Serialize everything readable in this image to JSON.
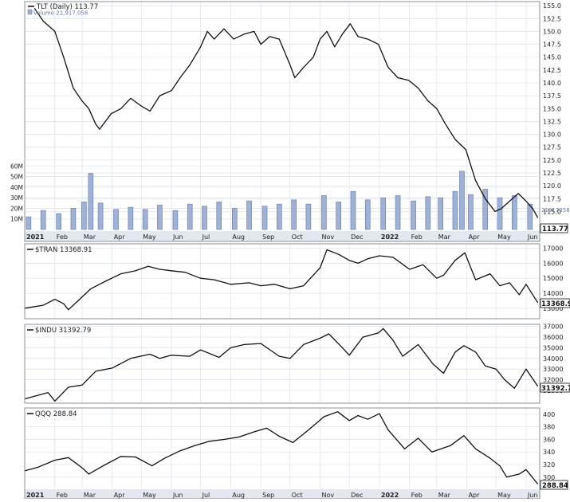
{
  "colors": {
    "line": "#111111",
    "volume_fill": "#9fb2d6",
    "volume_stroke": "#5f78ad",
    "grid": "#dfe4ee",
    "frame": "#8a8f9a",
    "band": "#e3e7ef",
    "text": "#222222"
  },
  "x_axis": {
    "start": "2021-01-01",
    "end": "2022-06-15",
    "ticks": [
      {
        "label": "2021",
        "date": "2021-01-01",
        "bold": true
      },
      {
        "label": "Feb",
        "date": "2021-02-01"
      },
      {
        "label": "Mar",
        "date": "2021-03-01"
      },
      {
        "label": "Apr",
        "date": "2021-04-01"
      },
      {
        "label": "May",
        "date": "2021-05-01"
      },
      {
        "label": "Jun",
        "date": "2021-06-01"
      },
      {
        "label": "Jul",
        "date": "2021-07-01"
      },
      {
        "label": "Aug",
        "date": "2021-08-01"
      },
      {
        "label": "Sep",
        "date": "2021-09-01"
      },
      {
        "label": "Oct",
        "date": "2021-10-01"
      },
      {
        "label": "Nov",
        "date": "2021-11-01"
      },
      {
        "label": "Dec",
        "date": "2021-12-01"
      },
      {
        "label": "2022",
        "date": "2022-01-01",
        "bold": true
      },
      {
        "label": "Feb",
        "date": "2022-02-01"
      },
      {
        "label": "Mar",
        "date": "2022-03-01"
      },
      {
        "label": "Apr",
        "date": "2022-04-01"
      },
      {
        "label": "May",
        "date": "2022-05-01"
      },
      {
        "label": "Jun",
        "date": "2022-06-01"
      }
    ]
  },
  "chart_data": [
    {
      "type": "line",
      "legend": "TLT (Daily) 113.77",
      "volume_legend": "Volume 21,917,058",
      "last_label": "113.77",
      "ylim": [
        111.5,
        155.8
      ],
      "yticks": [
        115,
        117.5,
        120,
        122.5,
        125,
        127.5,
        130,
        132.5,
        135,
        137.5,
        140,
        142.5,
        145,
        147.5,
        150,
        152.5,
        155
      ],
      "ytick_labels": [
        "115.0",
        "117.5",
        "120.0",
        "122.5",
        "125.0",
        "127.5",
        "130.0",
        "132.5",
        "135.0",
        "137.5",
        "140.0",
        "142.5",
        "145.0",
        "147.5",
        "150.0",
        "152.5",
        "155.0"
      ],
      "x": [
        "2021-01-11",
        "2021-01-20",
        "2021-02-01",
        "2021-02-10",
        "2021-02-20",
        "2021-03-01",
        "2021-03-08",
        "2021-03-15",
        "2021-03-19",
        "2021-03-31",
        "2021-04-10",
        "2021-04-20",
        "2021-05-01",
        "2021-05-10",
        "2021-05-20",
        "2021-06-01",
        "2021-06-10",
        "2021-06-20",
        "2021-07-01",
        "2021-07-08",
        "2021-07-15",
        "2021-07-25",
        "2021-08-04",
        "2021-08-15",
        "2021-08-25",
        "2021-09-01",
        "2021-09-10",
        "2021-09-20",
        "2021-10-01",
        "2021-10-06",
        "2021-10-15",
        "2021-10-25",
        "2021-11-01",
        "2021-11-08",
        "2021-11-16",
        "2021-11-24",
        "2021-12-02",
        "2021-12-10",
        "2021-12-20",
        "2021-12-31",
        "2022-01-10",
        "2022-01-20",
        "2022-01-31",
        "2022-02-10",
        "2022-02-20",
        "2022-03-01",
        "2022-03-10",
        "2022-03-20",
        "2022-03-31",
        "2022-04-10",
        "2022-04-20",
        "2022-04-30",
        "2022-05-06",
        "2022-05-15",
        "2022-05-24",
        "2022-06-01",
        "2022-06-08",
        "2022-06-13"
      ],
      "y": [
        154.5,
        152.0,
        150.0,
        145.0,
        139.0,
        136.5,
        135.0,
        132.0,
        131.0,
        134.0,
        135.0,
        137.0,
        135.5,
        134.5,
        137.5,
        138.5,
        141.0,
        143.5,
        147.0,
        150.0,
        148.5,
        150.5,
        148.5,
        149.5,
        150.0,
        147.5,
        149.0,
        148.5,
        143.5,
        141.0,
        143.0,
        145.0,
        148.5,
        150.0,
        147.0,
        149.5,
        151.5,
        149.0,
        148.5,
        147.5,
        143.0,
        141.0,
        140.5,
        139.0,
        136.5,
        135.0,
        132.0,
        129.0,
        127.0,
        121.0,
        117.5,
        115.0,
        115.5,
        117.0,
        118.5,
        117.0,
        115.5,
        113.77
      ]
    },
    {
      "type": "bar",
      "name": "Volume",
      "ylim": [
        0,
        70000000
      ],
      "yticks": [
        10000000,
        20000000,
        30000000,
        40000000,
        50000000,
        60000000
      ],
      "ytick_labels": [
        "10M",
        "20M",
        "30M",
        "40M",
        "50M",
        "60M"
      ],
      "last_label": "21917058",
      "x": [
        "2021-01-05",
        "2021-01-20",
        "2021-02-05",
        "2021-02-20",
        "2021-03-03",
        "2021-03-10",
        "2021-03-20",
        "2021-04-05",
        "2021-04-20",
        "2021-05-05",
        "2021-05-20",
        "2021-06-05",
        "2021-06-20",
        "2021-07-05",
        "2021-07-20",
        "2021-08-05",
        "2021-08-20",
        "2021-09-05",
        "2021-09-20",
        "2021-10-05",
        "2021-10-20",
        "2021-11-05",
        "2021-11-20",
        "2021-12-05",
        "2021-12-20",
        "2022-01-05",
        "2022-01-20",
        "2022-02-05",
        "2022-02-20",
        "2022-03-05",
        "2022-03-20",
        "2022-03-27",
        "2022-04-05",
        "2022-04-20",
        "2022-05-05",
        "2022-05-20",
        "2022-06-05"
      ],
      "values": [
        12000000,
        18000000,
        15000000,
        20000000,
        26000000,
        53000000,
        25000000,
        19000000,
        21000000,
        19000000,
        23000000,
        18000000,
        24000000,
        22000000,
        26000000,
        20000000,
        27000000,
        22000000,
        24000000,
        28000000,
        24000000,
        32000000,
        26000000,
        36000000,
        28000000,
        30000000,
        32000000,
        27000000,
        31000000,
        30000000,
        36000000,
        55000000,
        33000000,
        38000000,
        30000000,
        32000000,
        24000000
      ]
    },
    {
      "type": "line",
      "legend": "$TRAN 13368.91",
      "last_label": "13368.91",
      "ylim": [
        12300,
        17300
      ],
      "yticks": [
        13000,
        14000,
        15000,
        16000,
        17000
      ],
      "ytick_labels": [
        "13000",
        "14000",
        "15000",
        "16000",
        "17000"
      ],
      "x": [
        "2021-01-01",
        "2021-01-20",
        "2021-02-01",
        "2021-02-10",
        "2021-02-15",
        "2021-02-25",
        "2021-03-10",
        "2021-03-25",
        "2021-04-10",
        "2021-04-25",
        "2021-05-08",
        "2021-05-20",
        "2021-06-01",
        "2021-06-15",
        "2021-07-01",
        "2021-07-15",
        "2021-08-01",
        "2021-08-20",
        "2021-09-01",
        "2021-09-15",
        "2021-10-01",
        "2021-10-15",
        "2021-11-01",
        "2021-11-08",
        "2021-11-20",
        "2021-12-01",
        "2021-12-10",
        "2021-12-20",
        "2022-01-01",
        "2022-01-15",
        "2022-02-01",
        "2022-02-15",
        "2022-03-01",
        "2022-03-08",
        "2022-03-20",
        "2022-03-30",
        "2022-04-10",
        "2022-04-25",
        "2022-05-05",
        "2022-05-15",
        "2022-05-25",
        "2022-06-01",
        "2022-06-13"
      ],
      "y": [
        13000,
        13200,
        13600,
        13300,
        12900,
        13500,
        14300,
        14800,
        15300,
        15500,
        15800,
        15600,
        15500,
        15400,
        15000,
        14900,
        14600,
        14700,
        14500,
        14600,
        14300,
        14500,
        15700,
        16900,
        16600,
        16200,
        16000,
        16300,
        16500,
        16400,
        15600,
        15900,
        15000,
        15200,
        16200,
        16700,
        14900,
        15300,
        14500,
        14700,
        13900,
        14600,
        13369
      ]
    },
    {
      "type": "line",
      "legend": "$INDU 31392.79",
      "last_label": "31392.79",
      "ylim": [
        29800,
        37200
      ],
      "yticks": [
        31000,
        32000,
        33000,
        34000,
        35000,
        36000,
        37000
      ],
      "ytick_labels": [
        "31000",
        "32000",
        "33000",
        "34000",
        "35000",
        "36000",
        "37000"
      ],
      "x": [
        "2021-01-01",
        "2021-01-25",
        "2021-02-01",
        "2021-02-15",
        "2021-03-01",
        "2021-03-15",
        "2021-04-01",
        "2021-04-20",
        "2021-05-10",
        "2021-05-20",
        "2021-06-01",
        "2021-06-20",
        "2021-07-01",
        "2021-07-20",
        "2021-08-01",
        "2021-08-15",
        "2021-09-01",
        "2021-09-20",
        "2021-10-01",
        "2021-10-15",
        "2021-11-01",
        "2021-11-10",
        "2021-11-25",
        "2021-12-01",
        "2021-12-15",
        "2021-12-31",
        "2022-01-05",
        "2022-01-15",
        "2022-01-25",
        "2022-02-10",
        "2022-02-25",
        "2022-03-08",
        "2022-03-20",
        "2022-03-29",
        "2022-04-10",
        "2022-04-20",
        "2022-05-01",
        "2022-05-10",
        "2022-05-20",
        "2022-06-01",
        "2022-06-13"
      ],
      "y": [
        30200,
        30800,
        30000,
        31300,
        31500,
        32800,
        33100,
        34000,
        34400,
        34000,
        34300,
        34200,
        34800,
        34100,
        35000,
        35300,
        35400,
        34200,
        34000,
        35300,
        35900,
        36300,
        34900,
        34300,
        36000,
        36400,
        36800,
        35700,
        34200,
        35300,
        33500,
        32600,
        34600,
        35200,
        34600,
        33300,
        33000,
        32000,
        31200,
        33000,
        31393
      ]
    },
    {
      "type": "line",
      "legend": "QQQ 288.84",
      "last_label": "288.84",
      "ylim": [
        282,
        410
      ],
      "yticks": [
        300,
        320,
        340,
        360,
        380,
        400
      ],
      "ytick_labels": [
        "300",
        "320",
        "340",
        "360",
        "380",
        "400"
      ],
      "x": [
        "2021-01-01",
        "2021-01-15",
        "2021-02-01",
        "2021-02-15",
        "2021-03-01",
        "2021-03-08",
        "2021-03-25",
        "2021-04-10",
        "2021-04-25",
        "2021-05-12",
        "2021-05-25",
        "2021-06-10",
        "2021-06-25",
        "2021-07-10",
        "2021-07-25",
        "2021-08-10",
        "2021-08-25",
        "2021-09-07",
        "2021-09-20",
        "2021-10-04",
        "2021-10-20",
        "2021-11-05",
        "2021-11-19",
        "2021-12-01",
        "2021-12-10",
        "2021-12-20",
        "2022-01-01",
        "2022-01-10",
        "2022-01-27",
        "2022-02-10",
        "2022-02-24",
        "2022-03-15",
        "2022-03-29",
        "2022-04-10",
        "2022-04-25",
        "2022-05-05",
        "2022-05-12",
        "2022-05-25",
        "2022-06-01",
        "2022-06-13"
      ],
      "y": [
        310,
        316,
        327,
        331,
        315,
        305,
        320,
        333,
        332,
        318,
        330,
        342,
        350,
        357,
        360,
        364,
        372,
        378,
        365,
        355,
        375,
        396,
        404,
        390,
        398,
        392,
        401,
        375,
        345,
        362,
        340,
        350,
        366,
        345,
        330,
        318,
        300,
        305,
        312,
        289
      ]
    }
  ]
}
